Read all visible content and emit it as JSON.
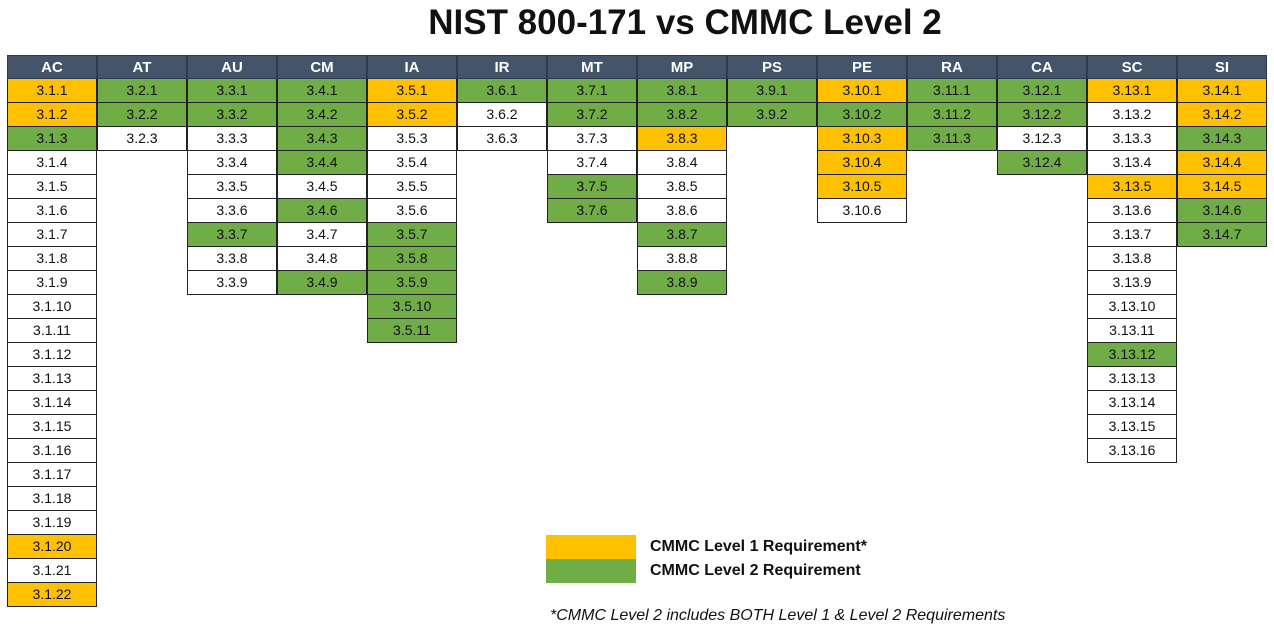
{
  "title": "NIST 800-171 vs CMMC Level 2",
  "colors": {
    "header": "#44546a",
    "level1": "#ffc000",
    "level2": "#70ad47",
    "none": "#ffffff"
  },
  "families": [
    {
      "name": "AC",
      "controls": [
        {
          "id": "3.1.1",
          "level": 1
        },
        {
          "id": "3.1.2",
          "level": 1
        },
        {
          "id": "3.1.3",
          "level": 2
        },
        {
          "id": "3.1.4",
          "level": 0
        },
        {
          "id": "3.1.5",
          "level": 0
        },
        {
          "id": "3.1.6",
          "level": 0
        },
        {
          "id": "3.1.7",
          "level": 0
        },
        {
          "id": "3.1.8",
          "level": 0
        },
        {
          "id": "3.1.9",
          "level": 0
        },
        {
          "id": "3.1.10",
          "level": 0
        },
        {
          "id": "3.1.11",
          "level": 0
        },
        {
          "id": "3.1.12",
          "level": 0
        },
        {
          "id": "3.1.13",
          "level": 0
        },
        {
          "id": "3.1.14",
          "level": 0
        },
        {
          "id": "3.1.15",
          "level": 0
        },
        {
          "id": "3.1.16",
          "level": 0
        },
        {
          "id": "3.1.17",
          "level": 0
        },
        {
          "id": "3.1.18",
          "level": 0
        },
        {
          "id": "3.1.19",
          "level": 0
        },
        {
          "id": "3.1.20",
          "level": 1
        },
        {
          "id": "3.1.21",
          "level": 0
        },
        {
          "id": "3.1.22",
          "level": 1
        }
      ]
    },
    {
      "name": "AT",
      "controls": [
        {
          "id": "3.2.1",
          "level": 2
        },
        {
          "id": "3.2.2",
          "level": 2
        },
        {
          "id": "3.2.3",
          "level": 0
        }
      ]
    },
    {
      "name": "AU",
      "controls": [
        {
          "id": "3.3.1",
          "level": 2
        },
        {
          "id": "3.3.2",
          "level": 2
        },
        {
          "id": "3.3.3",
          "level": 0
        },
        {
          "id": "3.3.4",
          "level": 0
        },
        {
          "id": "3.3.5",
          "level": 0
        },
        {
          "id": "3.3.6",
          "level": 0
        },
        {
          "id": "3.3.7",
          "level": 2
        },
        {
          "id": "3.3.8",
          "level": 0
        },
        {
          "id": "3.3.9",
          "level": 0
        }
      ]
    },
    {
      "name": "CM",
      "controls": [
        {
          "id": "3.4.1",
          "level": 2
        },
        {
          "id": "3.4.2",
          "level": 2
        },
        {
          "id": "3.4.3",
          "level": 2
        },
        {
          "id": "3.4.4",
          "level": 2
        },
        {
          "id": "3.4.5",
          "level": 0
        },
        {
          "id": "3.4.6",
          "level": 2
        },
        {
          "id": "3.4.7",
          "level": 0
        },
        {
          "id": "3.4.8",
          "level": 0
        },
        {
          "id": "3.4.9",
          "level": 2
        }
      ]
    },
    {
      "name": "IA",
      "controls": [
        {
          "id": "3.5.1",
          "level": 1
        },
        {
          "id": "3.5.2",
          "level": 1
        },
        {
          "id": "3.5.3",
          "level": 0
        },
        {
          "id": "3.5.4",
          "level": 0
        },
        {
          "id": "3.5.5",
          "level": 0
        },
        {
          "id": "3.5.6",
          "level": 0
        },
        {
          "id": "3.5.7",
          "level": 2
        },
        {
          "id": "3.5.8",
          "level": 2
        },
        {
          "id": "3.5.9",
          "level": 2
        },
        {
          "id": "3.5.10",
          "level": 2
        },
        {
          "id": "3.5.11",
          "level": 2
        }
      ]
    },
    {
      "name": "IR",
      "controls": [
        {
          "id": "3.6.1",
          "level": 2
        },
        {
          "id": "3.6.2",
          "level": 0
        },
        {
          "id": "3.6.3",
          "level": 0
        }
      ]
    },
    {
      "name": "MT",
      "controls": [
        {
          "id": "3.7.1",
          "level": 2
        },
        {
          "id": "3.7.2",
          "level": 2
        },
        {
          "id": "3.7.3",
          "level": 0
        },
        {
          "id": "3.7.4",
          "level": 0
        },
        {
          "id": "3.7.5",
          "level": 2
        },
        {
          "id": "3.7.6",
          "level": 2
        }
      ]
    },
    {
      "name": "MP",
      "controls": [
        {
          "id": "3.8.1",
          "level": 2
        },
        {
          "id": "3.8.2",
          "level": 2
        },
        {
          "id": "3.8.3",
          "level": 1
        },
        {
          "id": "3.8.4",
          "level": 0
        },
        {
          "id": "3.8.5",
          "level": 0
        },
        {
          "id": "3.8.6",
          "level": 0
        },
        {
          "id": "3.8.7",
          "level": 2
        },
        {
          "id": "3.8.8",
          "level": 0
        },
        {
          "id": "3.8.9",
          "level": 2
        }
      ]
    },
    {
      "name": "PS",
      "controls": [
        {
          "id": "3.9.1",
          "level": 2
        },
        {
          "id": "3.9.2",
          "level": 2
        }
      ]
    },
    {
      "name": "PE",
      "controls": [
        {
          "id": "3.10.1",
          "level": 1
        },
        {
          "id": "3.10.2",
          "level": 2
        },
        {
          "id": "3.10.3",
          "level": 1
        },
        {
          "id": "3.10.4",
          "level": 1
        },
        {
          "id": "3.10.5",
          "level": 1
        },
        {
          "id": "3.10.6",
          "level": 0
        }
      ]
    },
    {
      "name": "RA",
      "controls": [
        {
          "id": "3.11.1",
          "level": 2
        },
        {
          "id": "3.11.2",
          "level": 2
        },
        {
          "id": "3.11.3",
          "level": 2
        }
      ]
    },
    {
      "name": "CA",
      "controls": [
        {
          "id": "3.12.1",
          "level": 2
        },
        {
          "id": "3.12.2",
          "level": 2
        },
        {
          "id": "3.12.3",
          "level": 0
        },
        {
          "id": "3.12.4",
          "level": 2
        }
      ]
    },
    {
      "name": "SC",
      "controls": [
        {
          "id": "3.13.1",
          "level": 1
        },
        {
          "id": "3.13.2",
          "level": 0
        },
        {
          "id": "3.13.3",
          "level": 0
        },
        {
          "id": "3.13.4",
          "level": 0
        },
        {
          "id": "3.13.5",
          "level": 1
        },
        {
          "id": "3.13.6",
          "level": 0
        },
        {
          "id": "3.13.7",
          "level": 0
        },
        {
          "id": "3.13.8",
          "level": 0
        },
        {
          "id": "3.13.9",
          "level": 0
        },
        {
          "id": "3.13.10",
          "level": 0
        },
        {
          "id": "3.13.11",
          "level": 0
        },
        {
          "id": "3.13.12",
          "level": 2
        },
        {
          "id": "3.13.13",
          "level": 0
        },
        {
          "id": "3.13.14",
          "level": 0
        },
        {
          "id": "3.13.15",
          "level": 0
        },
        {
          "id": "3.13.16",
          "level": 0
        }
      ]
    },
    {
      "name": "SI",
      "controls": [
        {
          "id": "3.14.1",
          "level": 1
        },
        {
          "id": "3.14.2",
          "level": 1
        },
        {
          "id": "3.14.3",
          "level": 2
        },
        {
          "id": "3.14.4",
          "level": 1
        },
        {
          "id": "3.14.5",
          "level": 1
        },
        {
          "id": "3.14.6",
          "level": 2
        },
        {
          "id": "3.14.7",
          "level": 2
        }
      ]
    }
  ],
  "legend": {
    "level1": "CMMC Level 1 Requirement*",
    "level2": "CMMC Level 2 Requirement"
  },
  "footnote": "*CMMC Level 2 includes BOTH Level 1 & Level 2 Requirements"
}
